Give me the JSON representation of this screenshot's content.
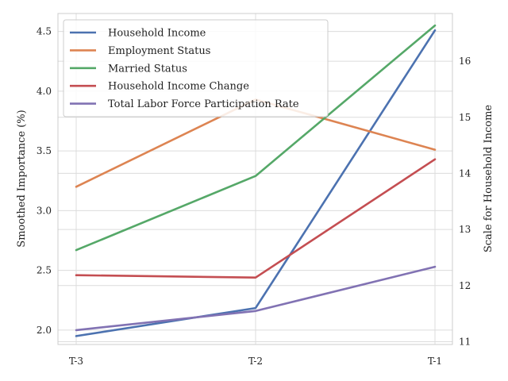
{
  "chart_data": {
    "type": "line",
    "categories": [
      "T-3",
      "T-2",
      "T-1"
    ],
    "ylabel": "Smoothed Importance (%)",
    "y2label": "Scale for Household Income",
    "ylim": [
      1.88,
      4.65
    ],
    "y2lim": [
      10.95,
      16.85
    ],
    "yticks": [
      "2.0",
      "2.5",
      "3.0",
      "3.5",
      "4.0",
      "4.5"
    ],
    "y2ticks": [
      "11",
      "12",
      "13",
      "14",
      "15",
      "16"
    ],
    "grid": true,
    "legend_position": "top-left",
    "series": [
      {
        "name": "Household Income",
        "axis": "right",
        "color": "#4c72b0",
        "values": [
          11.1,
          11.6,
          16.55
        ]
      },
      {
        "name": "Employment Status",
        "axis": "left",
        "color": "#dd8452",
        "values": [
          3.2,
          3.93,
          3.51
        ]
      },
      {
        "name": "Married Status",
        "axis": "left",
        "color": "#55a868",
        "values": [
          2.67,
          3.29,
          4.55
        ]
      },
      {
        "name": "Household Income Change",
        "axis": "left",
        "color": "#c44e52",
        "values": [
          2.46,
          2.44,
          3.43
        ]
      },
      {
        "name": "Total Labor Force Participation Rate",
        "axis": "left",
        "color": "#8172b3",
        "values": [
          2.0,
          2.16,
          2.53
        ]
      }
    ]
  }
}
